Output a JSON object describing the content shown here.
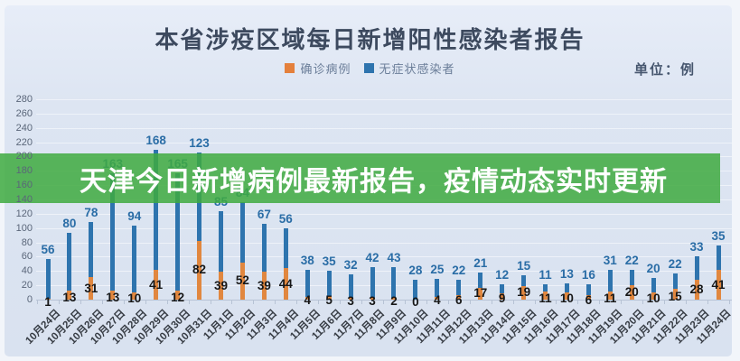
{
  "header": {
    "title": "本省涉疫区域每日新增阳性感染者报告",
    "unit_label": "单位：例",
    "legend": [
      {
        "label": "确诊病例",
        "color": "#e4803c"
      },
      {
        "label": "无症状感染者",
        "color": "#2e74ae"
      }
    ]
  },
  "banner": {
    "text": "天津今日新增病例最新报告，疫情动态实时更新",
    "background": "#3eaa40",
    "text_color": "#ffffff"
  },
  "chart_data": {
    "type": "bar",
    "stacked": true,
    "title": "本省涉疫区域每日新增阳性感染者报告",
    "unit": "例",
    "xlabel": "",
    "ylabel": "",
    "ylim": [
      0,
      280
    ],
    "ytick_step": 20,
    "grid": true,
    "legend_position": "top",
    "categories": [
      "10月24日",
      "10月25日",
      "10月26日",
      "10月27日",
      "10月28日",
      "10月29日",
      "10月30日",
      "10月31日",
      "11月1日",
      "11月2日",
      "11月3日",
      "11月4日",
      "11月5日",
      "11月6日",
      "11月7日",
      "11月8日",
      "11月9日",
      "11月10日",
      "11月11日",
      "11月12日",
      "11月13日",
      "11月14日",
      "11月15日",
      "11月16日",
      "11月17日",
      "11月18日",
      "11月19日",
      "11月20日",
      "11月21日",
      "11月22日",
      "11月23日",
      "11月24日"
    ],
    "series": [
      {
        "name": "确诊病例",
        "color": "#e1873f",
        "label_color": "#171717",
        "values": [
          1,
          13,
          31,
          13,
          10,
          41,
          12,
          82,
          39,
          52,
          39,
          44,
          4,
          5,
          3,
          3,
          2,
          0,
          4,
          6,
          17,
          9,
          19,
          11,
          10,
          6,
          11,
          20,
          10,
          15,
          28,
          41
        ]
      },
      {
        "name": "无症状感染者",
        "color": "#2e74ae",
        "label_color": "#2a6da6",
        "values": [
          56,
          80,
          78,
          163,
          94,
          168,
          165,
          123,
          85,
          84,
          67,
          56,
          38,
          35,
          32,
          42,
          43,
          28,
          25,
          22,
          21,
          12,
          15,
          11,
          13,
          16,
          31,
          22,
          20,
          22,
          33,
          35
        ]
      }
    ]
  }
}
